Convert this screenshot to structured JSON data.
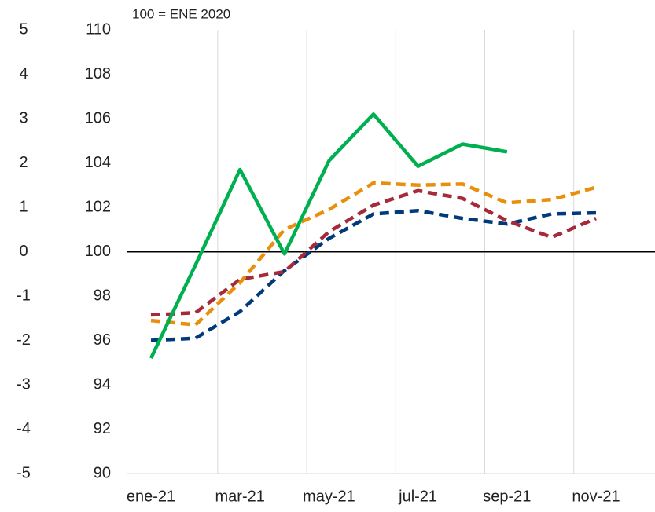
{
  "chart_data": {
    "type": "line",
    "annotation": "100 = ENE 2020",
    "categories": [
      "ene-21",
      null,
      "mar-21",
      null,
      "may-21",
      null,
      "jul-21",
      null,
      "sep-21",
      null,
      "nov-21",
      null
    ],
    "series": [
      {
        "color": "#00b050",
        "dashed": false,
        "values": [
          95.2,
          99.4,
          103.7,
          99.9,
          104.1,
          106.2,
          103.85,
          104.85,
          104.5,
          null,
          null,
          null
        ]
      },
      {
        "color": "#e8900c",
        "dashed": true,
        "values": [
          96.9,
          96.7,
          98.6,
          101.0,
          101.9,
          103.1,
          103.0,
          103.05,
          102.2,
          102.35,
          102.9,
          null
        ]
      },
      {
        "color": "#a52a3a",
        "dashed": true,
        "values": [
          97.15,
          97.25,
          98.75,
          99.1,
          100.9,
          102.1,
          102.75,
          102.4,
          101.4,
          100.65,
          101.5,
          null
        ]
      },
      {
        "color": "#003a7d",
        "dashed": true,
        "values": [
          96.0,
          96.1,
          97.3,
          99.15,
          100.6,
          101.7,
          101.85,
          101.5,
          101.25,
          101.7,
          101.75,
          null
        ]
      }
    ],
    "ylim": [
      90,
      110
    ],
    "yticks": [
      90,
      92,
      94,
      96,
      98,
      100,
      102,
      104,
      106,
      108,
      110
    ],
    "y2lim": [
      -5,
      5
    ],
    "y2ticks": [
      -5,
      -4,
      -3,
      -2,
      -1,
      0,
      1,
      2,
      3,
      4,
      5
    ],
    "reference_line": 100
  }
}
